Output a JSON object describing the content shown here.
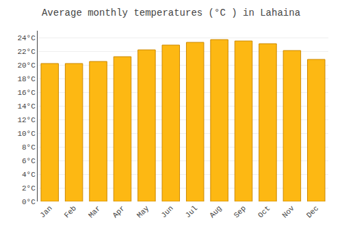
{
  "chart_data": {
    "type": "bar",
    "title": "Average monthly temperatures (°C ) in Lahaina",
    "categories": [
      "Jan",
      "Feb",
      "Mar",
      "Apr",
      "May",
      "Jun",
      "Jul",
      "Aug",
      "Sep",
      "Oct",
      "Nov",
      "Dec"
    ],
    "values": [
      20.2,
      20.2,
      20.5,
      21.2,
      22.2,
      22.9,
      23.3,
      23.7,
      23.5,
      23.1,
      22.1,
      20.8
    ],
    "color": "#FDB813",
    "ylim": [
      0,
      25
    ],
    "yticks": [
      {
        "value": 0,
        "label": "0°C"
      },
      {
        "value": 2,
        "label": "2°C"
      },
      {
        "value": 4,
        "label": "4°C"
      },
      {
        "value": 6,
        "label": "6°C"
      },
      {
        "value": 8,
        "label": "8°C"
      },
      {
        "value": 10,
        "label": "10°C"
      },
      {
        "value": 12,
        "label": "12°C"
      },
      {
        "value": 14,
        "label": "14°C"
      },
      {
        "value": 16,
        "label": "16°C"
      },
      {
        "value": 18,
        "label": "18°C"
      },
      {
        "value": 20,
        "label": "20°C"
      },
      {
        "value": 22,
        "label": "22°C"
      },
      {
        "value": 24,
        "label": "24°C"
      }
    ],
    "grid": true
  }
}
